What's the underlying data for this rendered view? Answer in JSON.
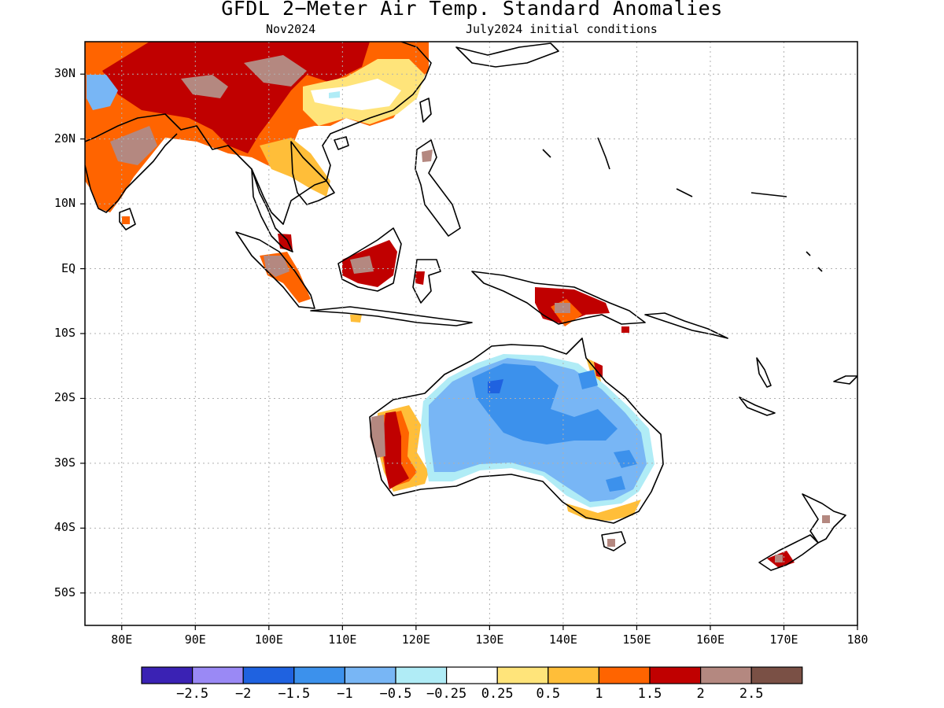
{
  "title": "GFDL 2−Meter Air Temp. Standard Anomalies",
  "subtitle_left": "Nov2024",
  "subtitle_right": "July2024 initial conditions",
  "map": {
    "lon_range": [
      75,
      180
    ],
    "lat_range": [
      -55,
      35
    ],
    "lat_labels": [
      {
        "text": "30N",
        "lat": 30
      },
      {
        "text": "20N",
        "lat": 20
      },
      {
        "text": "10N",
        "lat": 10
      },
      {
        "text": "EQ",
        "lat": 0
      },
      {
        "text": "10S",
        "lat": -10
      },
      {
        "text": "20S",
        "lat": -20
      },
      {
        "text": "30S",
        "lat": -30
      },
      {
        "text": "40S",
        "lat": -40
      },
      {
        "text": "50S",
        "lat": -50
      }
    ],
    "lon_labels": [
      {
        "text": "80E",
        "lon": 80
      },
      {
        "text": "90E",
        "lon": 90
      },
      {
        "text": "100E",
        "lon": 100
      },
      {
        "text": "110E",
        "lon": 110
      },
      {
        "text": "120E",
        "lon": 120
      },
      {
        "text": "130E",
        "lon": 130
      },
      {
        "text": "140E",
        "lon": 140
      },
      {
        "text": "150E",
        "lon": 150
      },
      {
        "text": "160E",
        "lon": 160
      },
      {
        "text": "170E",
        "lon": 170
      },
      {
        "text": "180",
        "lon": 180
      }
    ]
  },
  "colorbar": {
    "colors": [
      "#3a22b4",
      "#9a89f5",
      "#1f62e0",
      "#3c91ec",
      "#78b6f5",
      "#b0ecf6",
      "#ffffff",
      "#ffe47a",
      "#ffbe39",
      "#ff6400",
      "#c00000",
      "#b48880",
      "#7a5045"
    ],
    "labels": [
      "−2.5",
      "−2",
      "−1.5",
      "−1",
      "−0.5",
      "−0.25",
      "0.25",
      "0.5",
      "1",
      "1.5",
      "2",
      "2.5"
    ]
  }
}
